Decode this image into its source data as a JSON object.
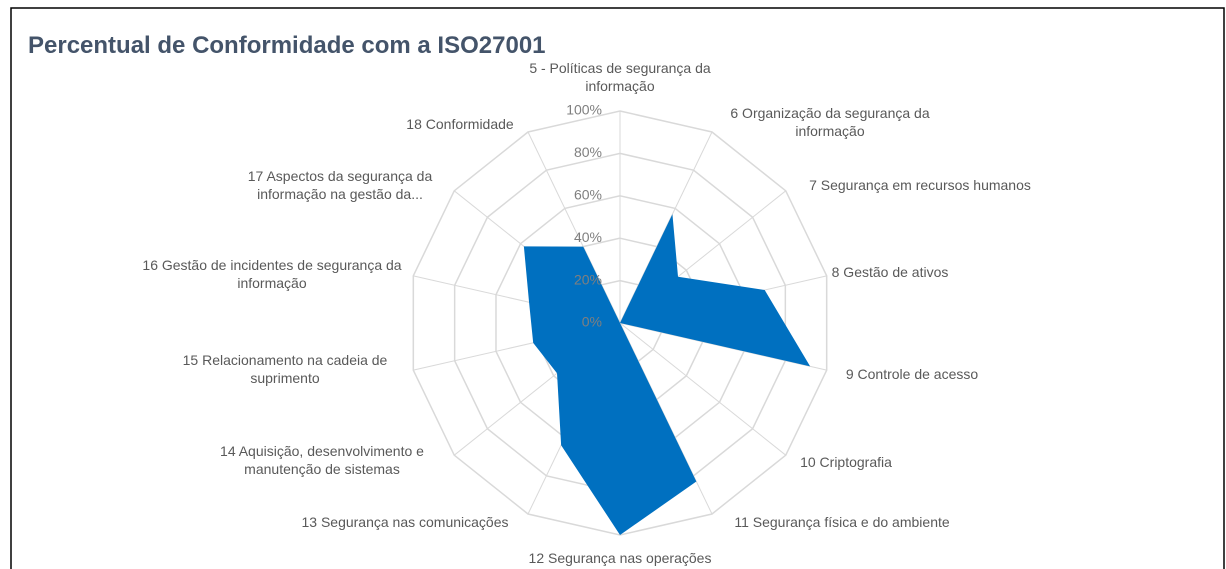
{
  "chart_data": {
    "type": "radar",
    "title": "Percentual de Conformidade com a ISO27001",
    "categories": [
      "5 - Políticas de segurança da informação",
      "6 Organização da segurança da informação",
      "7 Segurança em recursos humanos",
      "8 Gestão de ativos",
      "9 Controle de acesso",
      "10 Criptografia",
      "11 Segurança física e do ambiente",
      "12 Segurança nas operações",
      "13 Segurança nas comunicações",
      "14 Aquisição, desenvolvimento e manutenção de sistemas",
      "15 Relacionamento na cadeia de suprimento",
      "16 Gestão de incidentes de segurança da informação",
      "17 Aspectos da segurança da informação na gestão da...",
      "18 Conformidade"
    ],
    "values": [
      0,
      57,
      35,
      70,
      92,
      0,
      83,
      100,
      64,
      38,
      42,
      44,
      58,
      40
    ],
    "color": "#0070c0",
    "ylim": [
      0,
      100
    ],
    "yticks": [
      {
        "value": 0,
        "label": "0%"
      },
      {
        "value": 20,
        "label": "20%"
      },
      {
        "value": 40,
        "label": "40%"
      },
      {
        "value": 60,
        "label": "60%"
      },
      {
        "value": 80,
        "label": "80%"
      },
      {
        "value": 100,
        "label": "100%"
      }
    ],
    "grid": true
  }
}
